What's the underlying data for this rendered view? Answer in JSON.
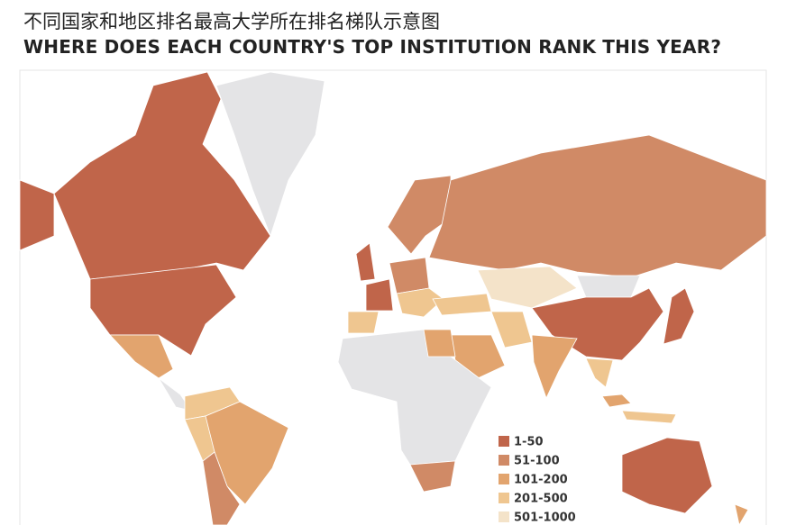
{
  "header": {
    "title_zh": "不同国家和地区排名最高大学所在排名梯队示意图",
    "title_en": "WHERE DOES EACH COUNTRY'S TOP INSTITUTION RANK THIS YEAR?"
  },
  "legend": {
    "items": [
      {
        "label": "1-50",
        "color": "#c0654a"
      },
      {
        "label": "51-100",
        "color": "#d08a66"
      },
      {
        "label": "101-200",
        "color": "#e2a46e"
      },
      {
        "label": "201-500",
        "color": "#efc690"
      },
      {
        "label": "501-1000",
        "color": "#f4e3c9"
      }
    ]
  }
}
